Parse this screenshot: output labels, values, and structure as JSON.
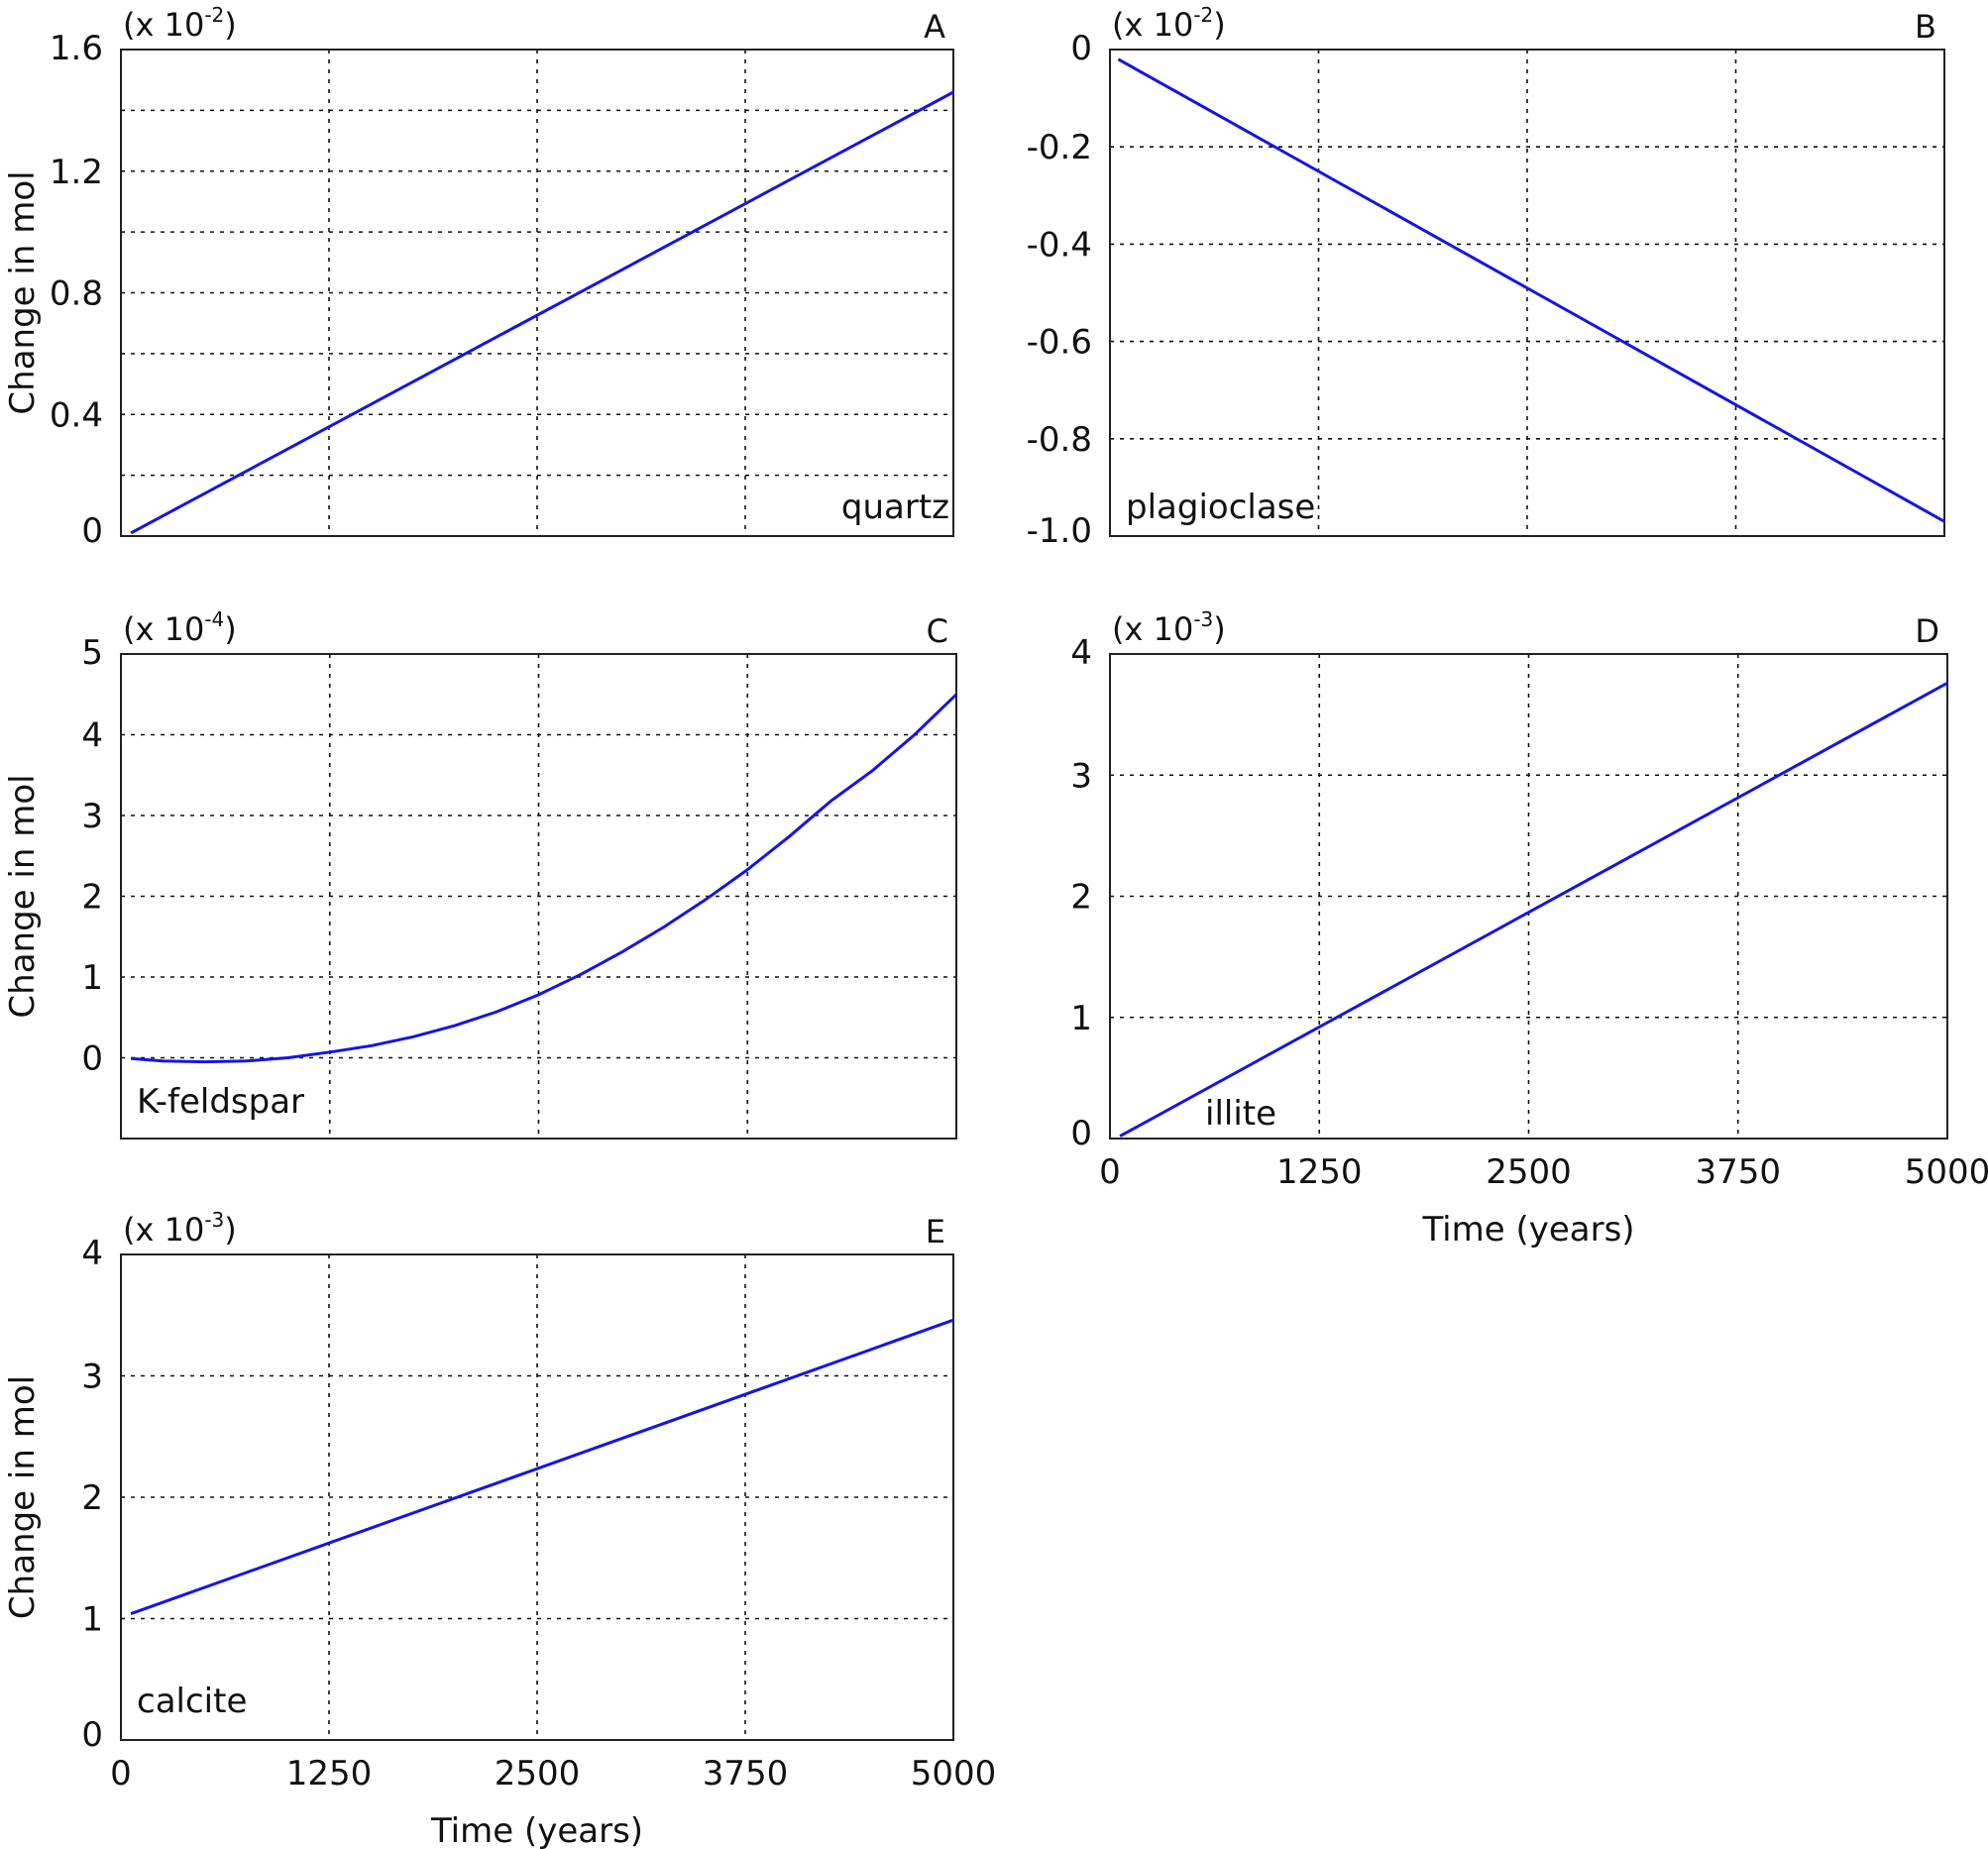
{
  "chart_data": [
    {
      "type": "line",
      "panel": "A",
      "multiplier": "(x 10",
      "exponent": "-2",
      "mineral": "quartz",
      "ylabel": "Change in mol",
      "xlabel": "",
      "xlim": [
        0,
        5000
      ],
      "ylim": [
        0,
        1.6
      ],
      "yticks": [
        "0",
        "0.4",
        "0.8",
        "1.2",
        "1.6"
      ],
      "xticks": [],
      "series": [
        {
          "x": [
            60,
            5000
          ],
          "y": [
            0.01,
            1.46
          ],
          "color": "#1414e6"
        }
      ]
    },
    {
      "type": "line",
      "panel": "B",
      "multiplier": "(x 10",
      "exponent": "-2",
      "mineral": "plagioclase",
      "ylabel": "",
      "xlabel": "",
      "xlim": [
        0,
        5000
      ],
      "ylim": [
        -1.0,
        0
      ],
      "yticks": [
        "-1.0",
        "-0.8",
        "-0.6",
        "-0.4",
        "-0.2",
        "0"
      ],
      "xticks": [],
      "series": [
        {
          "x": [
            50,
            5000
          ],
          "y": [
            -0.02,
            -0.97
          ],
          "color": "#1414e6"
        }
      ]
    },
    {
      "type": "line",
      "panel": "C",
      "multiplier": "(x 10",
      "exponent": "-4",
      "mineral": "K-feldspar",
      "ylabel": "Change in mol",
      "xlabel": "",
      "xlim": [
        0,
        5000
      ],
      "ylim": [
        -1,
        5
      ],
      "yticks": [
        "0",
        "1",
        "2",
        "3",
        "4",
        "5"
      ],
      "xticks": [],
      "series": [
        {
          "x": [
            60,
            250,
            500,
            750,
            1000,
            1250,
            1500,
            1750,
            2000,
            2250,
            2500,
            2750,
            3000,
            3250,
            3500,
            3750,
            4000,
            4250,
            4500,
            4750,
            5000
          ],
          "y": [
            -0.01,
            -0.04,
            -0.05,
            -0.04,
            0.0,
            0.07,
            0.15,
            0.26,
            0.4,
            0.57,
            0.78,
            1.03,
            1.31,
            1.62,
            1.96,
            2.33,
            2.74,
            3.18,
            3.56,
            4.0,
            4.5
          ],
          "color": "#1414e6"
        }
      ]
    },
    {
      "type": "line",
      "panel": "D",
      "multiplier": "(x 10",
      "exponent": "-3",
      "mineral": "illite",
      "ylabel": "",
      "xlabel": "Time (years)",
      "xlim": [
        0,
        5000
      ],
      "ylim": [
        0,
        4
      ],
      "yticks": [
        "0",
        "1",
        "2",
        "3",
        "4"
      ],
      "xticks": [
        "0",
        "1250",
        "2500",
        "3750",
        "5000"
      ],
      "series": [
        {
          "x": [
            60,
            5000
          ],
          "y": [
            0.02,
            3.76
          ],
          "color": "#1414e6"
        }
      ]
    },
    {
      "type": "line",
      "panel": "E",
      "multiplier": "(x 10",
      "exponent": "-3",
      "mineral": "calcite",
      "ylabel": "Change in mol",
      "xlabel": "Time (years)",
      "xlim": [
        0,
        5000
      ],
      "ylim": [
        0,
        4
      ],
      "yticks": [
        "0",
        "1",
        "2",
        "3",
        "4"
      ],
      "xticks": [
        "0",
        "1250",
        "2500",
        "3750",
        "5000"
      ],
      "series": [
        {
          "x": [
            60,
            5000
          ],
          "y": [
            1.04,
            3.46
          ],
          "color": "#1414e6"
        }
      ]
    }
  ]
}
